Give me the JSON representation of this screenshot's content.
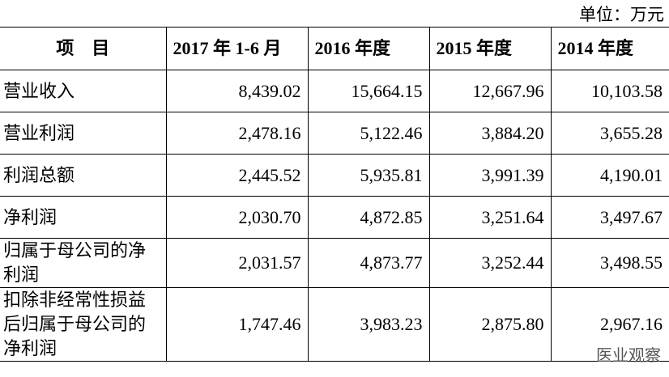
{
  "unit": "单位：万元",
  "table": {
    "header": [
      "项　目",
      "2017 年 1-6 月",
      "2016 年度",
      "2015 年度",
      "2014 年度"
    ],
    "rows": [
      [
        "营业收入",
        "8,439.02",
        "15,664.15",
        "12,667.96",
        "10,103.58"
      ],
      [
        "营业利润",
        "2,478.16",
        "5,122.46",
        "3,884.20",
        "3,655.28"
      ],
      [
        "利润总额",
        "2,445.52",
        "5,935.81",
        "3,991.39",
        "4,190.01"
      ],
      [
        "净利润",
        "2,030.70",
        "4,872.85",
        "3,251.64",
        "3,497.67"
      ],
      [
        "归属于母公司的净利润",
        "2,031.57",
        "4,873.77",
        "3,252.44",
        "3,498.55"
      ],
      [
        "扣除非经常性损益后归属于母公司的净利润",
        "1,747.46",
        "3,983.23",
        "2,875.80",
        "2,967.16"
      ]
    ]
  },
  "watermark": "医业观察"
}
